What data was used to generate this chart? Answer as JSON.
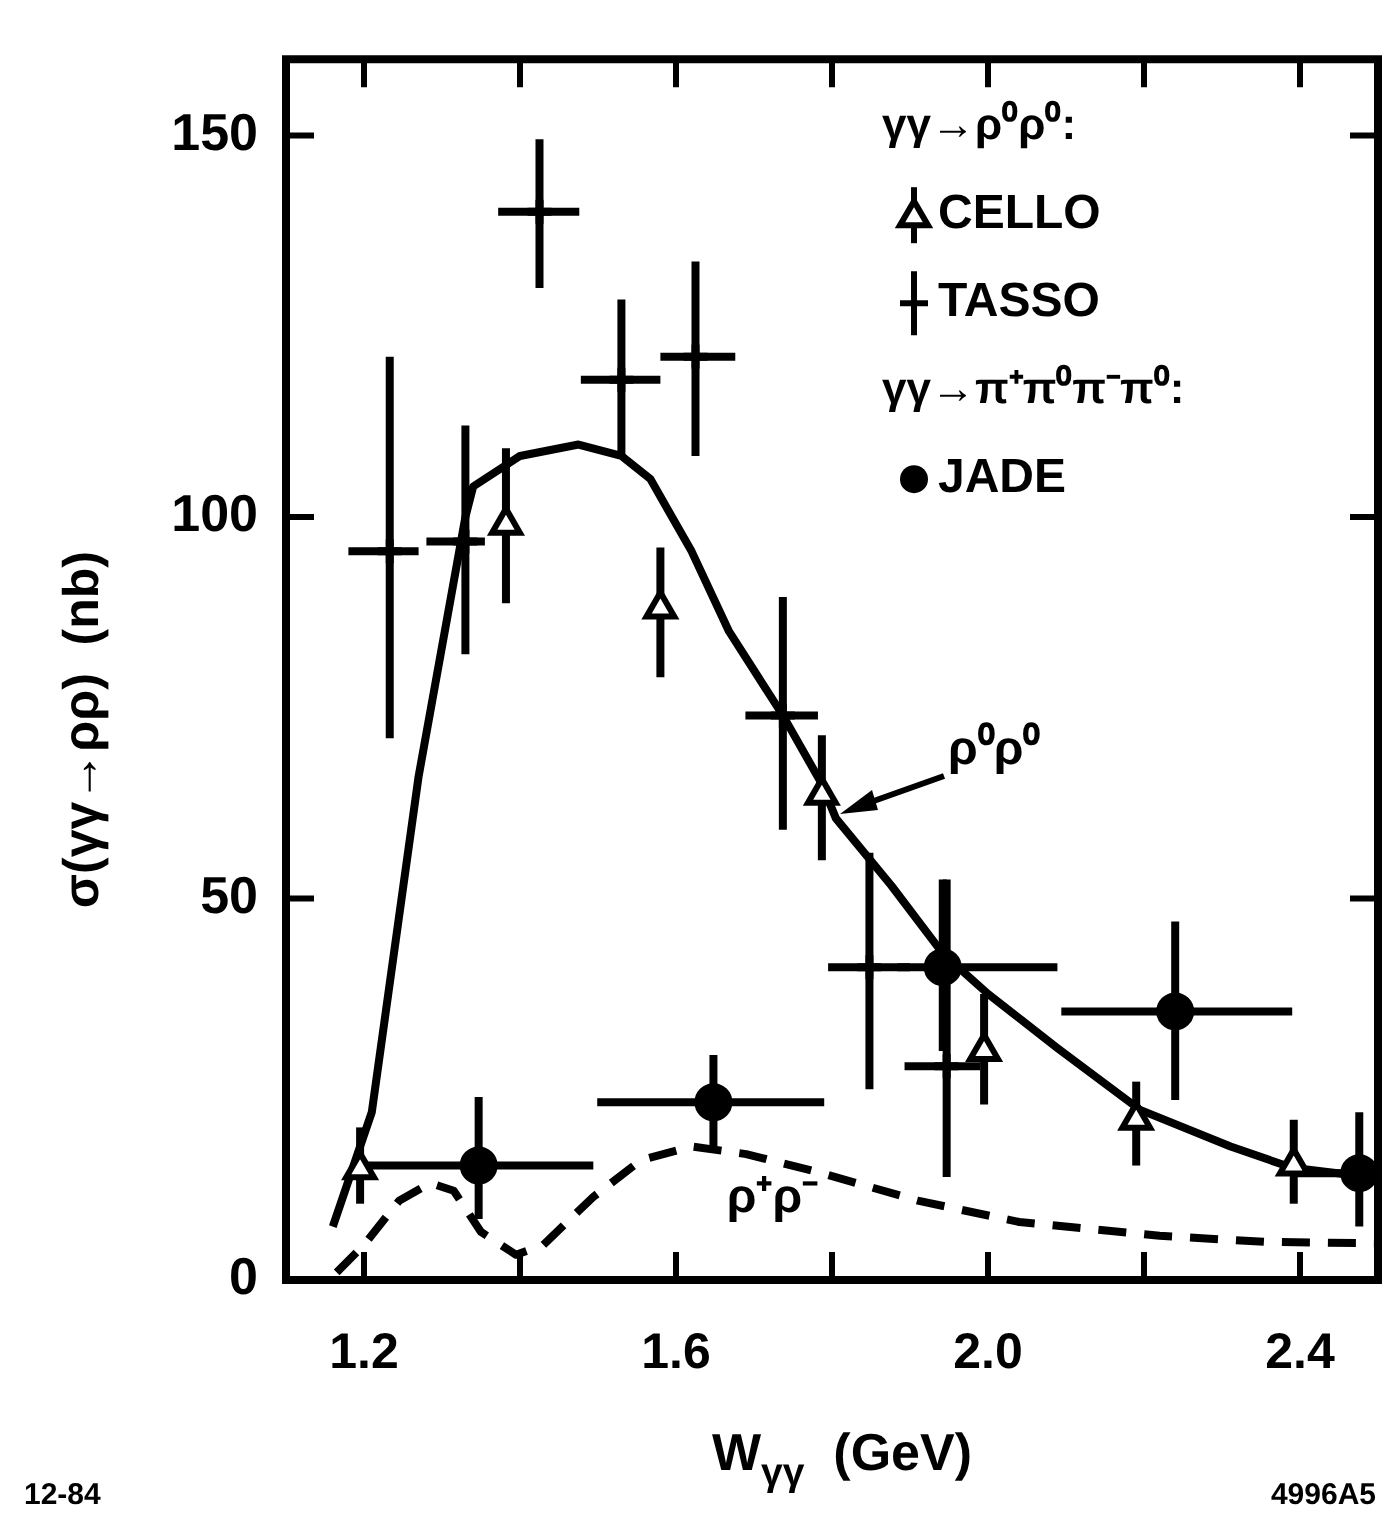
{
  "chart_data": {
    "type": "scatter",
    "xlabel": "W$_{γγ}$  (GeV)",
    "ylabel": "σ(γγ→ρρ)  (nb)",
    "xlim": [
      1.1,
      2.5
    ],
    "ylim": [
      0,
      160
    ],
    "xticks": [
      1.2,
      {
        "value": 1.4,
        "label": null
      },
      1.6,
      {
        "value": 1.8,
        "label": null
      },
      {
        "value": 2,
        "label": "2.0"
      },
      {
        "value": 2.2,
        "label": null
      },
      2.4
    ],
    "yticks": [
      0,
      50,
      100,
      150
    ],
    "grid": false,
    "legend": "top right",
    "series": [
      {
        "name": "CELLO",
        "type": "scatter",
        "color": "#000000",
        "marker": "triangle",
        "x": [
          1.195,
          1.382,
          1.58,
          1.787,
          1.995,
          2.19,
          2.392
        ],
        "values": [
          14.5,
          99,
          88,
          63.6,
          30,
          21,
          15
        ],
        "errors": [
          [
            10,
            20
          ],
          [
            88.7,
            109
          ],
          [
            79,
            96
          ],
          [
            55,
            71.4
          ],
          [
            23,
            37.5
          ],
          [
            15,
            26
          ],
          [
            10,
            21
          ]
        ]
      },
      {
        "name": "TASSO",
        "type": "scatter",
        "color": "#000000",
        "marker": "cross",
        "x": [
          1.233,
          1.33,
          1.425,
          1.53,
          1.625,
          1.737,
          1.848,
          1.947
        ],
        "values": [
          95.5,
          96.8,
          140,
          118,
          121,
          74,
          41,
          28
        ],
        "errors": [
          [
            71,
            121
          ],
          [
            82,
            112
          ],
          [
            130,
            149.5
          ],
          [
            108,
            128.5
          ],
          [
            108,
            133.5
          ],
          [
            59,
            89.5
          ],
          [
            25,
            56
          ],
          [
            13.5,
            52.5
          ]
        ],
        "xerrors": [
          [
            1.18,
            1.27
          ],
          [
            1.28,
            1.355
          ],
          [
            1.372,
            1.476
          ],
          [
            1.478,
            1.58
          ],
          [
            1.58,
            1.676
          ],
          [
            1.689,
            1.782
          ],
          [
            1.795,
            1.9
          ],
          [
            1.893,
            1.99
          ]
        ]
      },
      {
        "name": "JADE",
        "type": "scatter",
        "color": "#000000",
        "marker": "circle",
        "x": [
          1.347,
          1.648,
          1.942,
          2.24,
          2.476
        ],
        "values": [
          15,
          23.3,
          41,
          35.2,
          14
        ],
        "errors": [
          [
            8,
            24
          ],
          [
            17.5,
            29.5
          ],
          [
            30,
            52.5
          ],
          [
            23.6,
            47
          ],
          [
            7,
            22
          ]
        ],
        "xerrors": [
          [
            1.205,
            1.494
          ],
          [
            1.499,
            1.79
          ],
          [
            1.884,
            2.089
          ],
          [
            2.094,
            2.39
          ],
          [
            2.39,
            2.5
          ]
        ]
      },
      {
        "type": "line",
        "color": "#000000",
        "marker": "none",
        "line_style": "solid",
        "x": [
          1.16,
          1.21,
          1.27,
          1.33,
          1.34,
          1.4,
          1.475,
          1.53,
          1.567,
          1.62,
          1.668,
          1.737,
          1.787,
          1.805,
          1.876,
          1.942,
          2.0,
          2.089,
          2.195,
          2.311,
          2.39,
          2.496
        ],
        "values": [
          7,
          22,
          66,
          100,
          104,
          108,
          109.5,
          108,
          105,
          95.5,
          85,
          74,
          65,
          60.5,
          51.7,
          42.8,
          37.5,
          30.4,
          22.3,
          17.5,
          14.7,
          13.4
        ]
      },
      {
        "type": "line",
        "color": "#000000",
        "marker": "none",
        "line_style": "dashed",
        "x": [
          1.165,
          1.2,
          1.245,
          1.285,
          1.315,
          1.35,
          1.395,
          1.43,
          1.494,
          1.555,
          1.62,
          1.69,
          1.787,
          1.91,
          2.04,
          2.22,
          2.354,
          2.5
        ],
        "values": [
          1,
          4.6,
          10.4,
          12.7,
          11.7,
          6.3,
          3.3,
          4.6,
          10.9,
          15.7,
          17.5,
          16.5,
          14,
          10.4,
          7.6,
          5.8,
          5,
          4.8
        ]
      }
    ],
    "annotations": [
      "γγ→ρ⁰ρ⁰:",
      "γγ→π⁺π⁰π⁻π⁰:",
      {
        "text": "ρ⁰ρ⁰",
        "x": 1.8,
        "y": 62
      },
      {
        "text": "ρ⁺ρ⁻",
        "x": 1.66,
        "y": 17
      },
      "12-84",
      "4996A5"
    ]
  }
}
